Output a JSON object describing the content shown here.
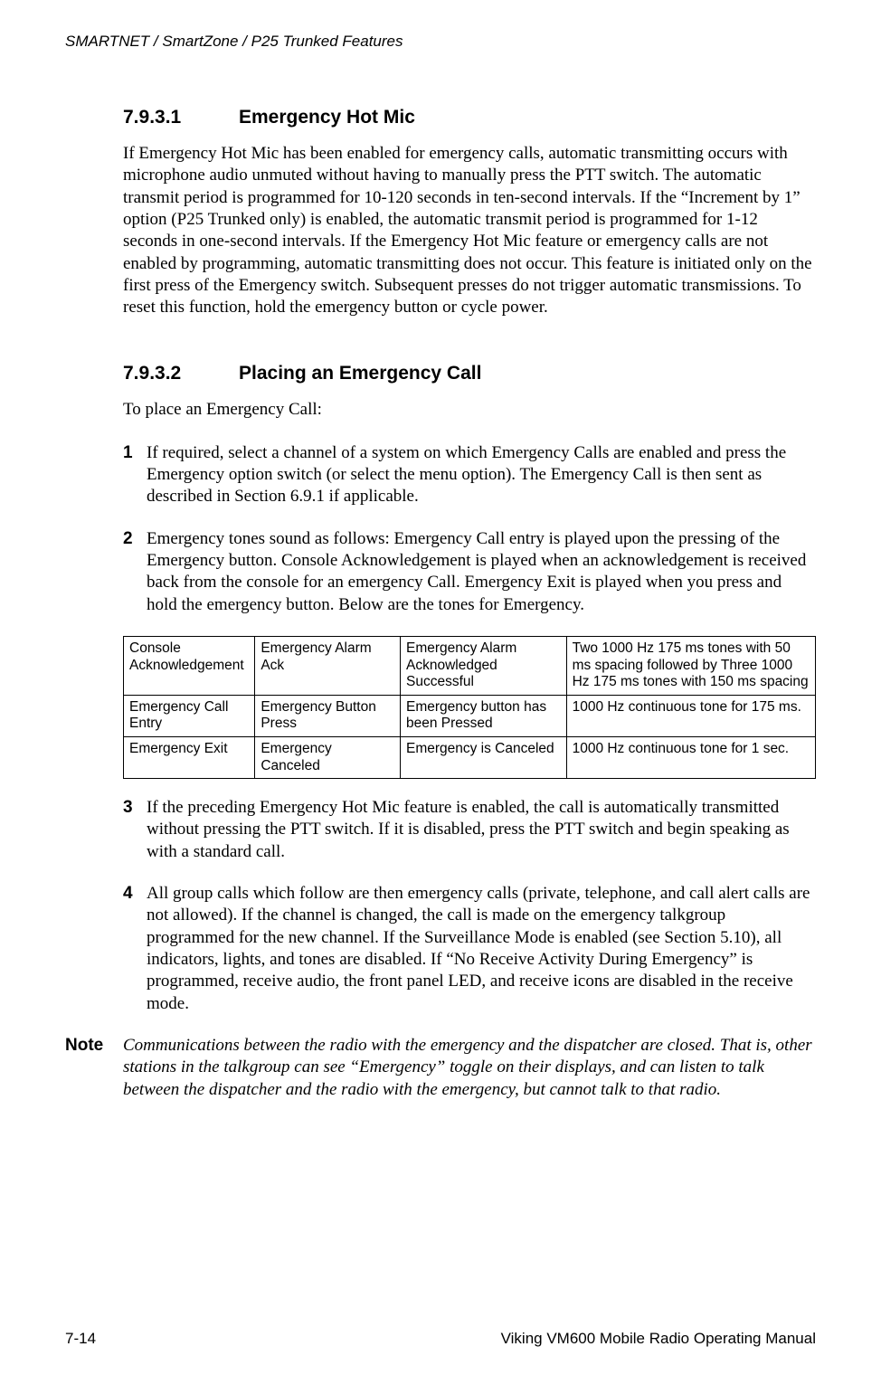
{
  "running_head": "SMARTNET / SmartZone / P25 Trunked Features",
  "sections": {
    "s1": {
      "num": "7.9.3.1",
      "title": "Emergency Hot Mic",
      "para": "If Emergency Hot Mic has been enabled for emergency calls, automatic transmitting occurs with microphone audio unmuted without having to manually press the PTT switch. The automatic transmit period is programmed for 10-120 seconds in ten-second intervals. If the “Increment by 1” option (P25 Trunked only) is enabled, the automatic transmit period is programmed for 1-12 seconds in one-second intervals. If the Emergency Hot Mic feature or emergency calls are not enabled by programming, automatic transmitting does not occur. This feature is initiated only on the first press of the Emergency switch. Subsequent presses do not trigger automatic transmissions. To reset this function, hold the emergency button or cycle power."
    },
    "s2": {
      "num": "7.9.3.2",
      "title": "Placing an Emergency Call",
      "intro": "To place an Emergency Call:",
      "items": {
        "i1": {
          "num": "1",
          "text": "If required, select a channel of a system on which Emergency Calls are enabled and press the Emergency option switch (or select the menu option). The Emergency Call is then sent as described in Section 6.9.1 if applicable."
        },
        "i2": {
          "num": "2",
          "text": "Emergency tones sound as follows: Emergency Call entry is played upon the pressing of the Emergency button. Console Acknowledgement is played when an acknowledgement is received back from the console for an emergency Call. Emergency Exit is played when you press and hold the emergency button. Below are the tones for Emergency."
        },
        "i3": {
          "num": "3",
          "text": "If the preceding Emergency Hot Mic feature is enabled, the call is automatically transmitted without pressing the PTT switch. If it is disabled, press the PTT switch and begin speaking as with a standard call."
        },
        "i4": {
          "num": "4",
          "text": "All group calls which follow are then emergency calls (private, telephone, and call alert calls are not allowed). If the channel is changed, the call is made on the emergency talkgroup programmed for the new channel. If the Surveillance Mode is enabled (see Section 5.10), all indicators, lights, and tones are disabled. If “No Receive Activity During Emergency” is programmed, receive audio, the front panel LED, and receive icons are disabled in the receive mode."
        }
      }
    }
  },
  "tones_table": {
    "rows": {
      "r1": {
        "c1": "Console Acknowledgement",
        "c2": "Emergency Alarm Ack",
        "c3": "Emergency Alarm Acknowledged Successful",
        "c4": "Two 1000 Hz 175 ms tones with 50 ms spacing followed by Three 1000 Hz 175 ms tones with 150 ms spacing"
      },
      "r2": {
        "c1": "Emergency Call Entry",
        "c2": "Emergency Button Press",
        "c3": "Emergency button has been Pressed",
        "c4": "1000 Hz continuous tone for 175 ms."
      },
      "r3": {
        "c1": "Emergency Exit",
        "c2": "Emergency Canceled",
        "c3": "Emergency is Canceled",
        "c4": "1000 Hz continuous tone for 1 sec."
      }
    }
  },
  "note": {
    "label": "Note",
    "text": "Communications between the radio with the emergency and the dispatcher are closed. That is, other stations in the talkgroup can see “Emergency” toggle on their displays, and can listen to talk between the dispatcher and the radio with the emergency, but cannot talk to that radio."
  },
  "footer": {
    "left": "7-14",
    "right": "Viking VM600 Mobile Radio Operating Manual"
  }
}
